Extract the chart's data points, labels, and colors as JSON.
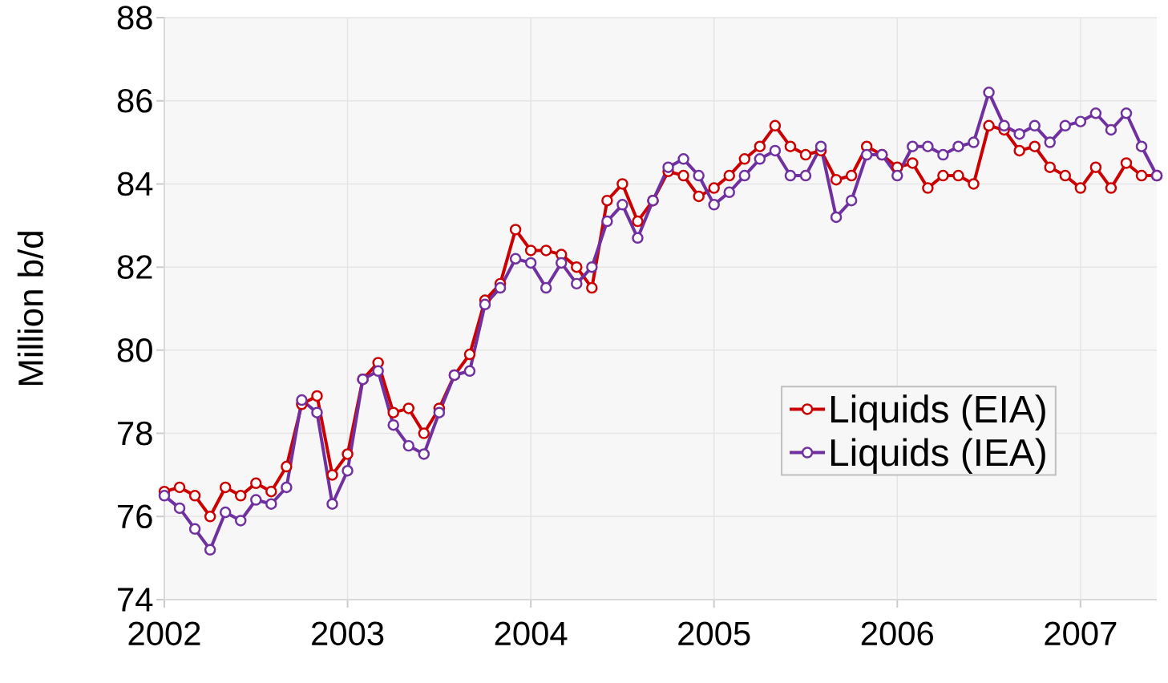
{
  "chart_data": {
    "type": "line",
    "ylabel": "Million b/d",
    "xlim": [
      "2002-01",
      "2007-06"
    ],
    "xticks": [
      "2002",
      "2003",
      "2004",
      "2005",
      "2006",
      "2007"
    ],
    "ylim": [
      74,
      88
    ],
    "yticks": [
      74,
      76,
      78,
      80,
      82,
      84,
      86,
      88
    ],
    "grid": true,
    "legend": "right",
    "marker": "circle",
    "line_style": "solid",
    "x": [
      "2002-01",
      "2002-02",
      "2002-03",
      "2002-04",
      "2002-05",
      "2002-06",
      "2002-07",
      "2002-08",
      "2002-09",
      "2002-10",
      "2002-11",
      "2002-12",
      "2003-01",
      "2003-02",
      "2003-03",
      "2003-04",
      "2003-05",
      "2003-06",
      "2003-07",
      "2003-08",
      "2003-09",
      "2003-10",
      "2003-11",
      "2003-12",
      "2004-01",
      "2004-02",
      "2004-03",
      "2004-04",
      "2004-05",
      "2004-06",
      "2004-07",
      "2004-08",
      "2004-09",
      "2004-10",
      "2004-11",
      "2004-12",
      "2005-01",
      "2005-02",
      "2005-03",
      "2005-04",
      "2005-05",
      "2005-06",
      "2005-07",
      "2005-08",
      "2005-09",
      "2005-10",
      "2005-11",
      "2005-12",
      "2006-01",
      "2006-02",
      "2006-03",
      "2006-04",
      "2006-05",
      "2006-06",
      "2006-07",
      "2006-08",
      "2006-09",
      "2006-10",
      "2006-11",
      "2006-12",
      "2007-01",
      "2007-02",
      "2007-03",
      "2007-04",
      "2007-05",
      "2007-06"
    ],
    "series": [
      {
        "name": "Liquids (EIA)",
        "color": "#cc0000",
        "values": [
          76.6,
          76.7,
          76.5,
          76.0,
          76.7,
          76.5,
          76.8,
          76.6,
          77.2,
          78.7,
          78.9,
          77.0,
          77.5,
          79.3,
          79.7,
          78.5,
          78.6,
          78.0,
          78.6,
          79.4,
          79.9,
          81.2,
          81.6,
          82.9,
          82.4,
          82.4,
          82.3,
          82.0,
          81.5,
          83.6,
          84.0,
          83.1,
          83.6,
          84.3,
          84.2,
          83.7,
          83.9,
          84.2,
          84.6,
          84.9,
          85.4,
          84.9,
          84.7,
          84.8,
          84.1,
          84.2,
          84.9,
          84.7,
          84.4,
          84.5,
          83.9,
          84.2,
          84.2,
          84.0,
          85.4,
          85.3,
          84.8,
          84.9,
          84.4,
          84.2,
          83.9,
          84.4,
          83.9,
          84.5,
          84.2,
          84.2
        ]
      },
      {
        "name": "Liquids (IEA)",
        "color": "#7030a0",
        "values": [
          76.5,
          76.2,
          75.7,
          75.2,
          76.1,
          75.9,
          76.4,
          76.3,
          76.7,
          78.8,
          78.5,
          76.3,
          77.1,
          79.3,
          79.5,
          78.2,
          77.7,
          77.5,
          78.5,
          79.4,
          79.5,
          81.1,
          81.5,
          82.2,
          82.1,
          81.5,
          82.1,
          81.6,
          82.0,
          83.1,
          83.5,
          82.7,
          83.6,
          84.4,
          84.6,
          84.2,
          83.5,
          83.8,
          84.2,
          84.6,
          84.8,
          84.2,
          84.2,
          84.9,
          83.2,
          83.6,
          84.7,
          84.7,
          84.2,
          84.9,
          84.9,
          84.7,
          84.9,
          85.0,
          86.2,
          85.4,
          85.2,
          85.4,
          85.0,
          85.4,
          85.5,
          85.7,
          85.3,
          85.7,
          84.9,
          84.2
        ]
      }
    ]
  }
}
